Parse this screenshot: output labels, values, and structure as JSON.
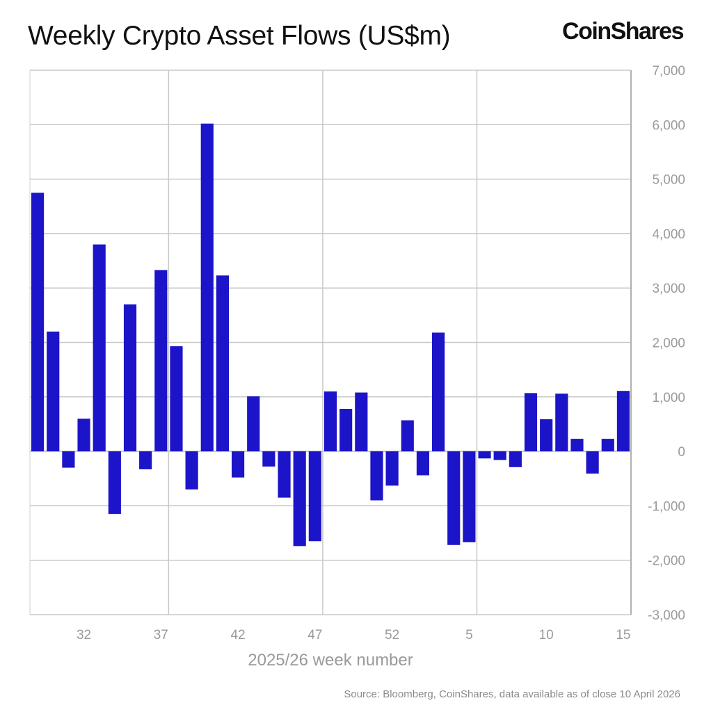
{
  "header": {
    "title": "Weekly Crypto Asset Flows (US$m)",
    "logo": "CoinShares"
  },
  "footer": {
    "source": "Source: Bloomberg, CoinShares, data available as of close 10 April 2026"
  },
  "chart_data": {
    "type": "bar",
    "title": "Weekly Crypto Asset Flows (US$m)",
    "xlabel": "2025/26 week number",
    "ylabel": "",
    "ylim": [
      -3000,
      7000
    ],
    "yticks": [
      "7,000",
      "6,000",
      "5,000",
      "4,000",
      "3,000",
      "2,000",
      "1,000",
      "0",
      "-1,000",
      "-2,000",
      "-3,000"
    ],
    "ytick_values": [
      7000,
      6000,
      5000,
      4000,
      3000,
      2000,
      1000,
      0,
      -1000,
      -2000,
      -3000
    ],
    "xtick_labels": [
      "32",
      "37",
      "42",
      "47",
      "52",
      "5",
      "10",
      "15"
    ],
    "y_axis_side": "right",
    "grid": true,
    "bar_color": "#1c14c8",
    "categories": [
      "29",
      "30",
      "31",
      "32",
      "33",
      "34",
      "35",
      "36",
      "37",
      "38",
      "39",
      "40",
      "41",
      "42",
      "43",
      "44",
      "45",
      "46",
      "47",
      "48",
      "49",
      "50",
      "51",
      "52",
      "1",
      "2",
      "3",
      "4",
      "5",
      "6",
      "7",
      "8",
      "9",
      "10",
      "11",
      "12",
      "13",
      "14",
      "15"
    ],
    "values": [
      4750,
      2200,
      -300,
      600,
      3800,
      -1150,
      2700,
      -330,
      3330,
      1930,
      -700,
      6020,
      3230,
      -480,
      1010,
      -280,
      -850,
      -1740,
      -1650,
      1100,
      780,
      1080,
      -900,
      -630,
      570,
      -440,
      2180,
      -1720,
      -1670,
      -130,
      -160,
      -290,
      1070,
      590,
      1060,
      230,
      -410,
      230,
      1110
    ]
  }
}
